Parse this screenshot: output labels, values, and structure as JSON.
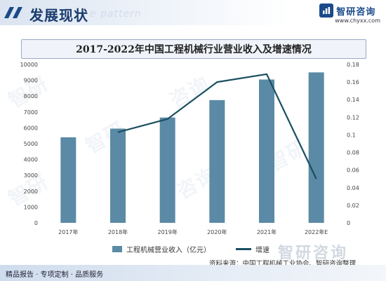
{
  "header": {
    "section_title": "发展现状",
    "watermark_text": "e pattern",
    "brand_name": "智研咨询",
    "brand_url": "www.chyxx.com"
  },
  "chart_data": {
    "type": "bar",
    "title": "2017-2022年中国工程机械行业营业收入及增速情况",
    "categories": [
      "2017年",
      "2018年",
      "2019年",
      "2020年",
      "2021年",
      "2022年E"
    ],
    "series": [
      {
        "name": "工程机械营业收入（亿元）",
        "type": "bar",
        "axis": "left",
        "color": "#5a8aa5",
        "values": [
          5400,
          5950,
          6650,
          7750,
          9050,
          9500
        ]
      },
      {
        "name": "增速",
        "type": "line",
        "axis": "right",
        "color": "#1a4f60",
        "values": [
          null,
          0.103,
          0.118,
          0.16,
          0.169,
          0.05
        ]
      }
    ],
    "y_left": {
      "min": 0,
      "max": 10000,
      "ticks": [
        "0",
        "1000",
        "2000",
        "3000",
        "4000",
        "5000",
        "6000",
        "7000",
        "8000",
        "9000",
        "10000"
      ]
    },
    "y_right": {
      "min": 0,
      "max": 0.18,
      "ticks": [
        "0",
        "0.02",
        "0.04",
        "0.06",
        "0.08",
        "0.1",
        "0.12",
        "0.14",
        "0.16",
        "0.18"
      ]
    },
    "grid": false,
    "legend_position": "bottom"
  },
  "legend": {
    "bar_label": "工程机械营业收入（亿元）",
    "line_label": "增速"
  },
  "footer": {
    "left_text": "精品报告 · 专项定制 · 品质服务",
    "source_text": "资料来源：中国工程机械工业协会、智研咨询整理",
    "watermark_brand": "智研咨询"
  },
  "colors": {
    "bar": "#5a8aa5",
    "line": "#1a4f60",
    "title_blue": "#1a3c6e"
  }
}
